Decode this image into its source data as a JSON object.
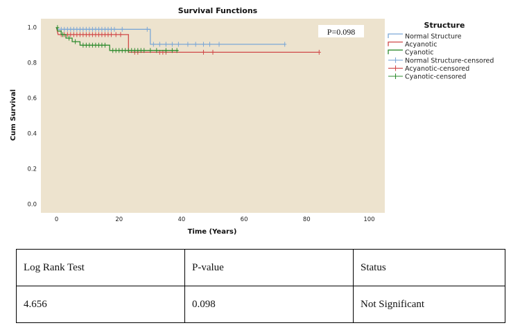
{
  "chart_data": {
    "type": "line",
    "subtype": "kaplan-meier step",
    "title": "Survival Functions",
    "xlabel": "Time (Years)",
    "ylabel": "Cum Survival",
    "xlim": [
      -5,
      105
    ],
    "ylim": [
      -0.05,
      1.05
    ],
    "x_ticks": [
      0,
      20,
      40,
      60,
      80,
      100
    ],
    "y_ticks": [
      0.0,
      0.2,
      0.4,
      0.6,
      0.8,
      1.0
    ],
    "x_tick_labels": [
      "0",
      "20",
      "40",
      "60",
      "80",
      "100"
    ],
    "y_tick_labels": [
      "0.0",
      "0.2",
      "0.4",
      "0.6",
      "0.8",
      "1.0"
    ],
    "annotation": "P=0.098",
    "legend_title": "Structure",
    "legend_position": "right",
    "legend_labels": [
      "Normal Structure",
      "Acyanotic",
      "Cyanotic",
      "Normal Structure-censored",
      "Acyanotic-censored",
      "Cyanotic-censored"
    ],
    "series": [
      {
        "name": "Normal Structure",
        "color": "#7ba7d6",
        "steps": [
          [
            0,
            1.0
          ],
          [
            0.6,
            0.99
          ],
          [
            30,
            0.99
          ],
          [
            30,
            0.905
          ],
          [
            73,
            0.905
          ]
        ],
        "censored": [
          1.5,
          2.5,
          3.5,
          4.5,
          5.5,
          6.5,
          7.5,
          8.5,
          9.5,
          10.5,
          11.5,
          12.5,
          13.5,
          14.5,
          15.5,
          16.5,
          17.5,
          18.5,
          21,
          29,
          31,
          33,
          35,
          37,
          39,
          42,
          44.5,
          47,
          49,
          52,
          73
        ]
      },
      {
        "name": "Acyanotic",
        "color": "#d04848",
        "steps": [
          [
            0,
            1.0
          ],
          [
            0.5,
            0.96
          ],
          [
            23,
            0.96
          ],
          [
            23,
            0.86
          ],
          [
            84,
            0.86
          ]
        ],
        "censored": [
          1.5,
          2.5,
          3.5,
          4.5,
          5.5,
          6.5,
          7.5,
          8.5,
          9.5,
          10.5,
          11.5,
          12.5,
          13.5,
          14.5,
          15.5,
          16.5,
          17.5,
          19,
          20.5,
          25,
          26,
          33,
          34,
          35,
          47,
          50,
          84
        ]
      },
      {
        "name": "Cyanotic",
        "color": "#2e8b2e",
        "steps": [
          [
            0,
            1.0
          ],
          [
            0.4,
            0.98
          ],
          [
            1.5,
            0.98
          ],
          [
            1.5,
            0.96
          ],
          [
            3,
            0.96
          ],
          [
            3,
            0.94
          ],
          [
            5,
            0.94
          ],
          [
            5,
            0.92
          ],
          [
            7.5,
            0.92
          ],
          [
            7.5,
            0.9
          ],
          [
            17,
            0.9
          ],
          [
            17,
            0.87
          ],
          [
            39,
            0.87
          ]
        ],
        "censored": [
          0.3,
          2,
          4,
          6,
          8.5,
          9.5,
          10.5,
          11.5,
          12.5,
          13.5,
          14.5,
          15.5,
          18,
          19,
          20,
          21,
          22,
          23,
          24,
          25,
          26,
          27,
          28,
          30,
          32,
          35,
          37,
          38.5
        ]
      }
    ]
  },
  "stats_table": {
    "headers": [
      "Log Rank Test",
      "P-value",
      "Status"
    ],
    "rows": [
      [
        "4.656",
        "0.098",
        "Not Significant"
      ]
    ]
  }
}
